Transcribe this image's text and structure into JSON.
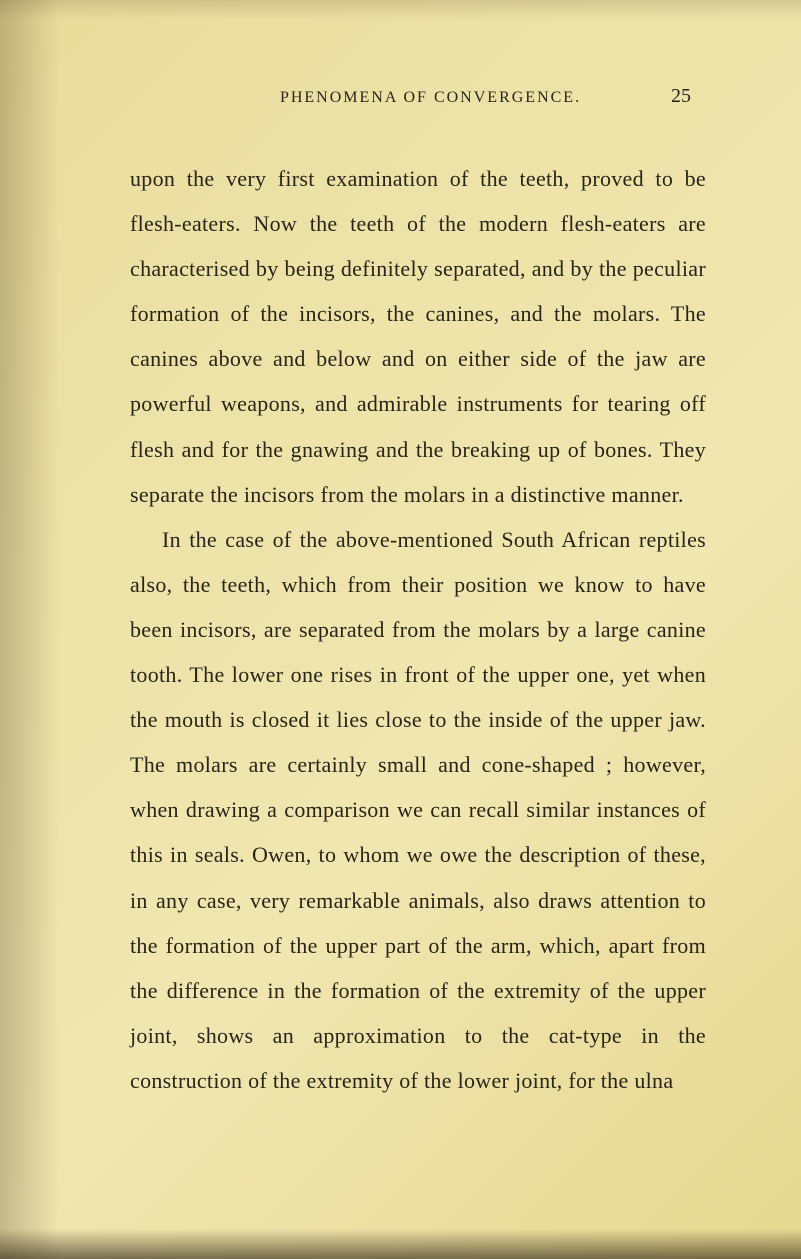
{
  "header": {
    "title": "PHENOMENA OF CONVERGENCE.",
    "page_number": "25"
  },
  "body": {
    "paragraph1": "upon the very first examination of the teeth, proved to be flesh-eaters. Now the teeth of the modern flesh-eaters are characterised by being definitely separated, and by the peculiar formation of the incisors, the canines, and the molars. The canines above and below and on either side of the jaw are powerful weapons, and admirable instruments for tearing off flesh and for the gnawing and the breaking up of bones. They separate the incisors from the molars in a distinctive manner.",
    "paragraph2": "In the case of the above-mentioned South African reptiles also, the teeth, which from their position we know to have been incisors, are sepa­rated from the molars by a large canine tooth. The lower one rises in front of the upper one, yet when the mouth is closed it lies close to the inside of the upper jaw. The molars are certainly small and cone-shaped ; however, when drawing a comparison we can recall similar instances of this in seals. Owen, to whom we owe the description of these, in any case, very remarkable animals, also draws attention to the formation of the upper part of the arm, which, apart from the difference in the form­ation of the extremity of the upper joint, shows an approximation to the cat-type in the construction of the extremity of the lower joint, for the ulna"
  },
  "styling": {
    "background_colors": [
      "#e8dc9a",
      "#ede3a8",
      "#f0e6b0",
      "#e5d890"
    ],
    "text_color": "#2a2418",
    "body_fontsize": 22,
    "header_fontsize": 16,
    "pagenum_fontsize": 20,
    "line_height": 2.05,
    "font_family": "Georgia, Times New Roman, serif"
  }
}
